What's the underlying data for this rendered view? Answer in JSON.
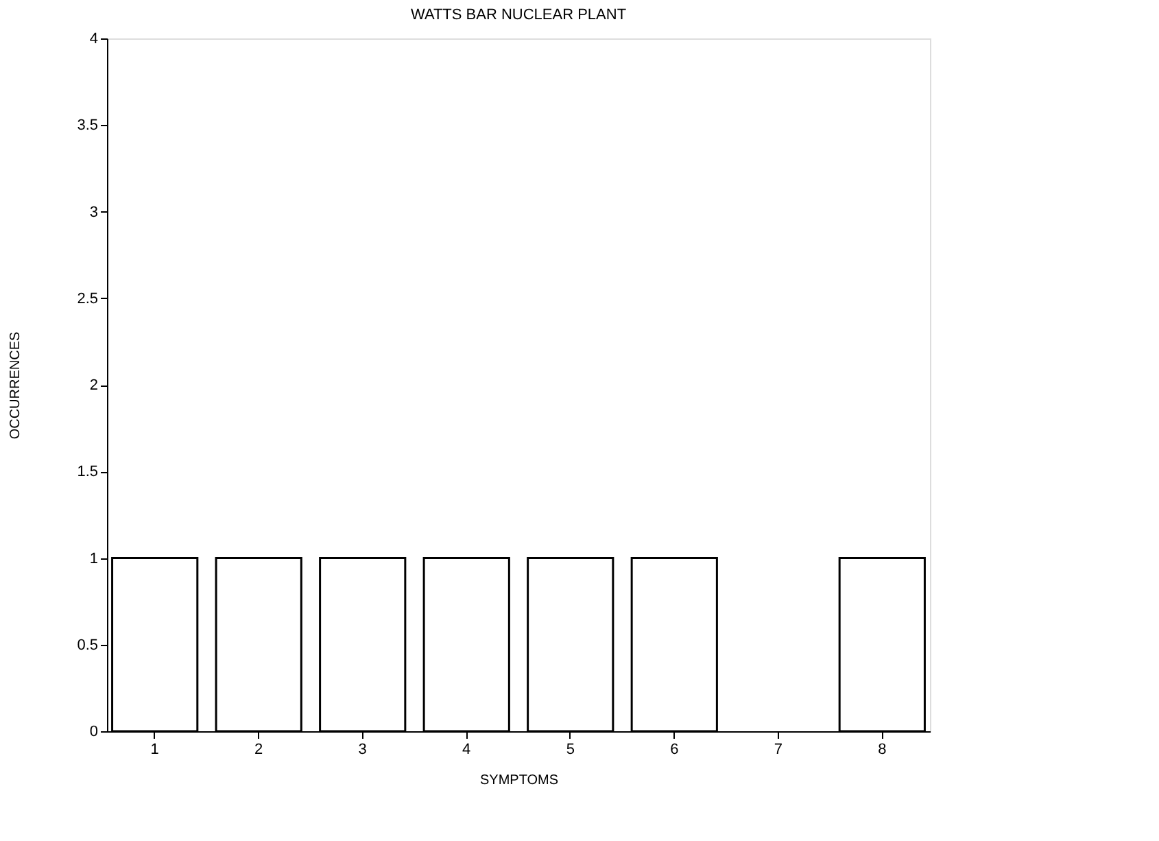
{
  "chart_data": {
    "type": "bar",
    "title": "WATTS BAR NUCLEAR PLANT",
    "xlabel": "SYMPTOMS",
    "ylabel": "OCCURRENCES",
    "categories": [
      "1",
      "2",
      "3",
      "4",
      "5",
      "6",
      "7",
      "8"
    ],
    "values": [
      1,
      1,
      1,
      1,
      1,
      1,
      0,
      1
    ],
    "color": "#ffffff",
    "ylim": [
      0,
      4
    ],
    "yticks": [
      0,
      0.5,
      1,
      1.5,
      2,
      2.5,
      3,
      3.5,
      4
    ],
    "grid": false
  }
}
